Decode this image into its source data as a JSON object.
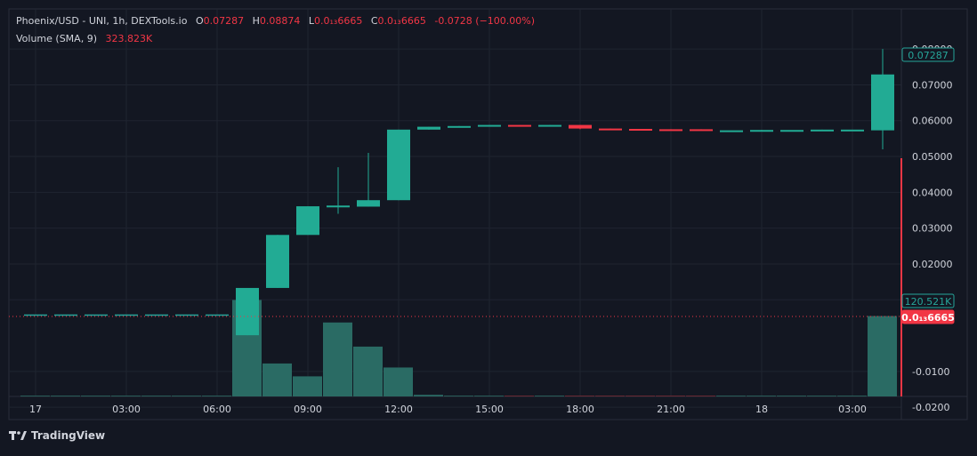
{
  "colors": {
    "background": "#131722",
    "grid": "#1f2430",
    "up": "#26a69a",
    "up_candle": "#22ab94",
    "down": "#f23645",
    "volume_up": "#2a6b64",
    "axis_text": "#d1d4dc"
  },
  "legend": {
    "symbol": "Phoenix/USD - UNI, 1h, DEXTools.io",
    "o_label": "O",
    "o_value": "0.07287",
    "h_label": "H",
    "h_value": "0.08874",
    "l_label": "L",
    "l_value": "0.0₁₃6665",
    "c_label": "C",
    "c_value": "0.0₁₃6665",
    "change": "-0.0728 (−100.00%)",
    "volume_label": "Volume (SMA, 9)",
    "volume_value": "323.823K"
  },
  "price_axis": {
    "ticks": [
      "0.08000",
      "0.07000",
      "0.06000",
      "0.05000",
      "0.04000",
      "0.03000",
      "0.02000",
      "0.01000",
      "-0.0100",
      "-0.0200"
    ],
    "tick_values": [
      0.08,
      0.07,
      0.06,
      0.05,
      0.04,
      0.03,
      0.02,
      0.01,
      -0.01,
      -0.02
    ],
    "last_price_badge": "0.07287",
    "volume_badge": "120.521K",
    "close_badge": "0.0₁₃6665"
  },
  "time_axis": {
    "labels": [
      "17",
      "03:00",
      "06:00",
      "09:00",
      "12:00",
      "15:00",
      "18:00",
      "21:00",
      "18",
      "03:00"
    ],
    "label_bars": [
      0,
      3,
      6,
      9,
      12,
      15,
      18,
      21,
      24,
      27
    ]
  },
  "branding": {
    "logo_text": "TradingView"
  },
  "chart_data": {
    "type": "candlestick",
    "interval": "1h",
    "ylim": [
      -0.022,
      0.085
    ],
    "volume_scale_max": 120.521,
    "bars": [
      {
        "o": 0.0001,
        "h": 0.0001,
        "l": 0.0001,
        "c": 0.0001,
        "vol": 0
      },
      {
        "o": 0.0001,
        "h": 0.0001,
        "l": 0.0001,
        "c": 0.0001,
        "vol": 0
      },
      {
        "o": 0.0001,
        "h": 0.0001,
        "l": 0.0001,
        "c": 0.0001,
        "vol": 0
      },
      {
        "o": 0.0001,
        "h": 0.0001,
        "l": 0.0001,
        "c": 0.0001,
        "vol": 0
      },
      {
        "o": 0.0001,
        "h": 0.0001,
        "l": 0.0001,
        "c": 0.0001,
        "vol": 0
      },
      {
        "o": 0.0001,
        "h": 0.0001,
        "l": 0.0001,
        "c": 0.0001,
        "vol": 0
      },
      {
        "o": 0.0001,
        "h": 0.0001,
        "l": 0.0001,
        "c": 0.0001,
        "vol": 0
      },
      {
        "o": 0.0001,
        "h": 0.0133,
        "l": 0.0001,
        "c": 0.0133,
        "vol": 120
      },
      {
        "o": 0.0133,
        "h": 0.0281,
        "l": 0.0133,
        "c": 0.0281,
        "vol": 41
      },
      {
        "o": 0.0281,
        "h": 0.0361,
        "l": 0.0281,
        "c": 0.0361,
        "vol": 25
      },
      {
        "o": 0.0358,
        "h": 0.047,
        "l": 0.034,
        "c": 0.0363,
        "vol": 92
      },
      {
        "o": 0.036,
        "h": 0.051,
        "l": 0.036,
        "c": 0.0378,
        "vol": 62
      },
      {
        "o": 0.0378,
        "h": 0.0575,
        "l": 0.0378,
        "c": 0.0575,
        "vol": 36
      },
      {
        "o": 0.0575,
        "h": 0.0583,
        "l": 0.0575,
        "c": 0.0583,
        "vol": 2
      },
      {
        "o": 0.0583,
        "h": 0.0585,
        "l": 0.0581,
        "c": 0.0585,
        "vol": 0
      },
      {
        "o": 0.0585,
        "h": 0.0588,
        "l": 0.0585,
        "c": 0.0588,
        "vol": 0
      },
      {
        "o": 0.0588,
        "h": 0.0588,
        "l": 0.0585,
        "c": 0.0586,
        "vol": 0
      },
      {
        "o": 0.0586,
        "h": 0.0588,
        "l": 0.0586,
        "c": 0.0588,
        "vol": 0
      },
      {
        "o": 0.0588,
        "h": 0.0588,
        "l": 0.0576,
        "c": 0.0578,
        "vol": 0
      },
      {
        "o": 0.0578,
        "h": 0.0578,
        "l": 0.0577,
        "c": 0.0577,
        "vol": 0
      },
      {
        "o": 0.0577,
        "h": 0.0577,
        "l": 0.0576,
        "c": 0.0576,
        "vol": 0
      },
      {
        "o": 0.0576,
        "h": 0.0576,
        "l": 0.0575,
        "c": 0.0575,
        "vol": 0
      },
      {
        "o": 0.0576,
        "h": 0.0576,
        "l": 0.0573,
        "c": 0.0573,
        "vol": 0
      },
      {
        "o": 0.0573,
        "h": 0.0573,
        "l": 0.0573,
        "c": 0.0573,
        "vol": 0
      },
      {
        "o": 0.0573,
        "h": 0.0574,
        "l": 0.0573,
        "c": 0.0574,
        "vol": 0
      },
      {
        "o": 0.0574,
        "h": 0.0574,
        "l": 0.0574,
        "c": 0.0574,
        "vol": 0
      },
      {
        "o": 0.0574,
        "h": 0.0575,
        "l": 0.0574,
        "c": 0.0575,
        "vol": 0
      },
      {
        "o": 0.0575,
        "h": 0.0575,
        "l": 0.0575,
        "c": 0.0575,
        "vol": 0
      },
      {
        "o": 0.0573,
        "h": 0.08,
        "l": 0.052,
        "c": 0.0729,
        "vol": 100
      }
    ]
  }
}
